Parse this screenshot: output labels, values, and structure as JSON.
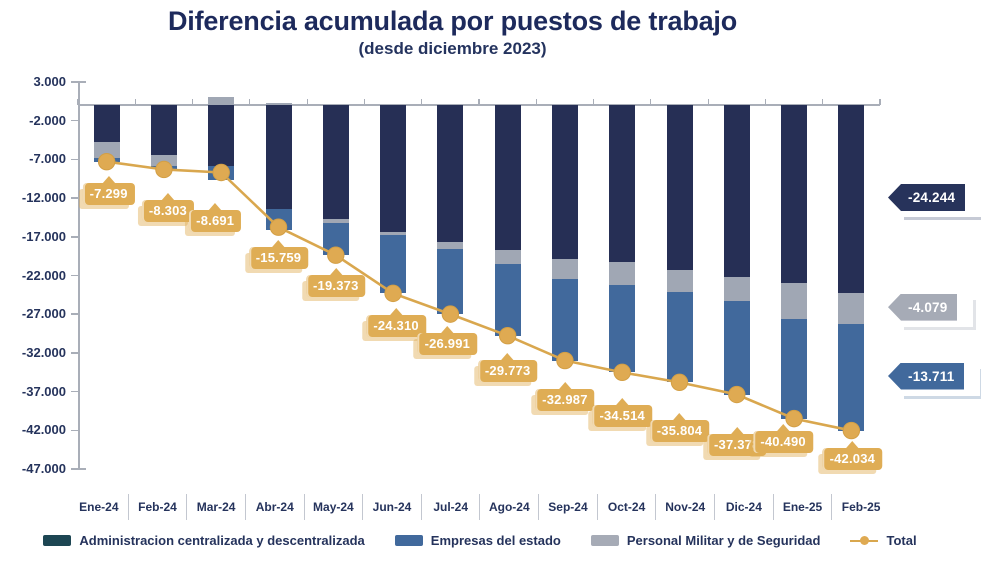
{
  "title": "Diferencia acumulada por puestos de trabajo",
  "subtitle": "(desde diciembre 2023)",
  "colors": {
    "title": "#1D2A5C",
    "axis_text": "#25335C",
    "axis_line": "#A9AEB8",
    "admin": "#262F55",
    "militar": "#A0A7B4",
    "empresas": "#41699C",
    "total": "#DFAA52",
    "total_line": "#D9A74E",
    "tag_gold": "#DFAD55",
    "legend_admin_swatch": "#1D4653",
    "x_divider": "#C3C7D0",
    "background": "#FFFFFF"
  },
  "chart_data": {
    "type": "bar",
    "variant": "stacked-bars-with-total-line",
    "title": "Diferencia acumulada por puestos de trabajo",
    "subtitle": "(desde diciembre 2023)",
    "grid": false,
    "legend_position": "bottom",
    "ylim": [
      -47000,
      3000
    ],
    "y_ticks": [
      "3.000",
      "-2.000",
      "-7.000",
      "-12.000",
      "-17.000",
      "-22.000",
      "-27.000",
      "-32.000",
      "-37.000",
      "-42.000",
      "-47.000"
    ],
    "categories": [
      "Ene-24",
      "Feb-24",
      "Mar-24",
      "Abr-24",
      "May-24",
      "Jun-24",
      "Jul-24",
      "Ago-24",
      "Sep-24",
      "Oct-24",
      "Nov-24",
      "Dic-24",
      "Ene-25",
      "Feb-25"
    ],
    "series": [
      {
        "key": "admin",
        "name": "Administracion centralizada y descentralizada",
        "color": "#262F55",
        "values": [
          -4770,
          -6400,
          -7900,
          -13400,
          -14700,
          -16400,
          -17700,
          -18700,
          -19900,
          -20300,
          -21300,
          -22200,
          -23000,
          -24244
        ]
      },
      {
        "key": "militar",
        "name": "Personal Militar y de Seguridad",
        "color": "#A0A7B4",
        "values": [
          -2030,
          -1400,
          1000,
          300,
          -500,
          -400,
          -900,
          -1800,
          -2500,
          -2900,
          -2800,
          -3100,
          -4600,
          -4079
        ]
      },
      {
        "key": "empresas",
        "name": "Empresas del estado",
        "color": "#41699C",
        "values": [
          -499,
          -503,
          -1791,
          -2659,
          -4173,
          -7510,
          -8391,
          -9273,
          -10587,
          -11314,
          -11704,
          -12078,
          -12890,
          -13711
        ]
      }
    ],
    "total_line": {
      "name": "Total",
      "color": "#D9A74E",
      "marker_color": "#DFAA52",
      "values": [
        -7299,
        -8303,
        -8691,
        -15759,
        -19373,
        -24310,
        -26991,
        -29773,
        -32987,
        -34514,
        -35804,
        -37378,
        -40490,
        -42034
      ],
      "labels": [
        "-7.299",
        "-8.303",
        "-8.691",
        "-15.759",
        "-19.373",
        "-24.310",
        "-26.991",
        "-29.773",
        "-32.987",
        "-34.514",
        "-35.804",
        "-37.378",
        "-40.490",
        "-42.034"
      ]
    },
    "callouts": [
      {
        "label": "-24.244",
        "series": "admin",
        "color": "#27335B",
        "shadow": "#8E97AD"
      },
      {
        "label": "-4.079",
        "series": "militar",
        "color": "#A6ABB6",
        "shadow": "#C6CAD2"
      },
      {
        "label": "-13.711",
        "series": "empresas",
        "color": "#41699C",
        "shadow": "#9FB5CD"
      }
    ]
  },
  "legend": {
    "items": [
      {
        "label": "Administracion centralizada y descentralizada",
        "marker": "swatch",
        "color": "#1D4653"
      },
      {
        "label": "Empresas del estado",
        "marker": "swatch",
        "color": "#41699C"
      },
      {
        "label": "Personal Militar y de Seguridad",
        "marker": "swatch",
        "color": "#A6ABB6"
      },
      {
        "label": "Total",
        "marker": "line",
        "color": "#D9A74E",
        "dot_color": "#DFAA52"
      }
    ]
  }
}
